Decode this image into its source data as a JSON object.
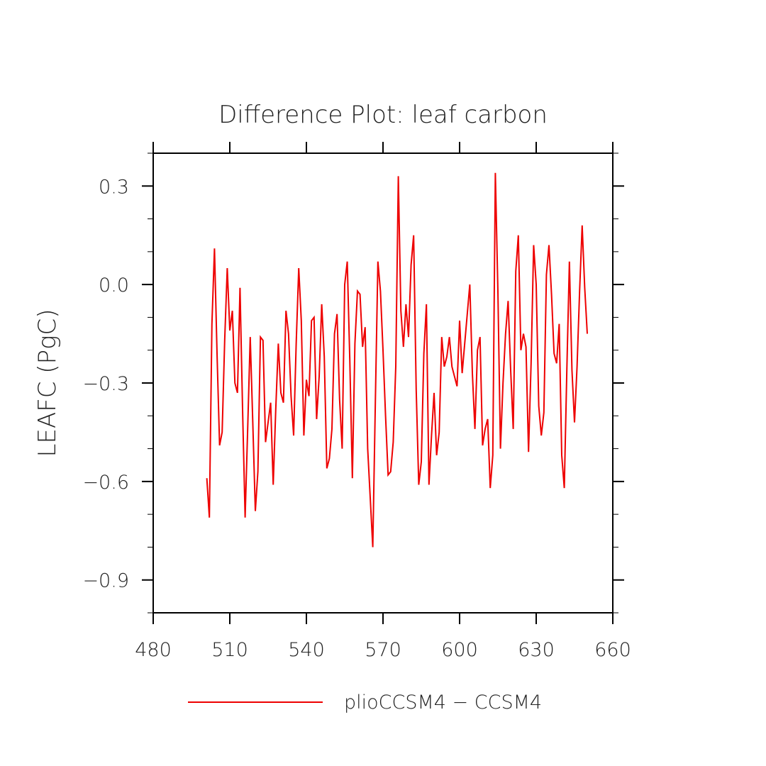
{
  "chart_data": {
    "type": "line",
    "title": "Difference Plot: leaf carbon",
    "xlabel": "",
    "ylabel": "LEAFC  (PgC)",
    "xlim": [
      480,
      660
    ],
    "ylim": [
      -1.0,
      0.4
    ],
    "xticks": [
      480,
      510,
      540,
      570,
      600,
      630,
      660
    ],
    "xtick_labels": [
      "480",
      "510",
      "540",
      "570",
      "600",
      "630",
      "660"
    ],
    "yticks": [
      -0.9,
      -0.6,
      -0.3,
      0.0,
      0.3
    ],
    "ytick_labels": [
      "−0.9",
      "−0.6",
      "−0.3",
      "0.0",
      "0.3"
    ],
    "grid": false,
    "legend_position": "bottom-center",
    "series": [
      {
        "name": "plioCCSM4 − CCSM4",
        "color": "#ee0000",
        "x": [
          501,
          502,
          503,
          504,
          505,
          506,
          507,
          508,
          509,
          510,
          511,
          512,
          513,
          514,
          515,
          516,
          517,
          518,
          519,
          520,
          521,
          522,
          523,
          524,
          525,
          526,
          527,
          528,
          529,
          530,
          531,
          532,
          533,
          534,
          535,
          536,
          537,
          538,
          539,
          540,
          541,
          542,
          543,
          544,
          545,
          546,
          547,
          548,
          549,
          550,
          551,
          552,
          553,
          554,
          555,
          556,
          557,
          558,
          559,
          560,
          561,
          562,
          563,
          564,
          565,
          566,
          567,
          568,
          569,
          570,
          571,
          572,
          573,
          574,
          575,
          576,
          577,
          578,
          579,
          580,
          581,
          582,
          583,
          584,
          585,
          586,
          587,
          588,
          589,
          590,
          591,
          592,
          593,
          594,
          595,
          596,
          597,
          598,
          599,
          600,
          601,
          602,
          603,
          604,
          605,
          606,
          607,
          608,
          609,
          610,
          611,
          612,
          613,
          614,
          615,
          616,
          617,
          618,
          619,
          620,
          621,
          622,
          623,
          624,
          625,
          626,
          627,
          628,
          629,
          630,
          631,
          632,
          633,
          634,
          635,
          636,
          637,
          638,
          639,
          640,
          641,
          642,
          643,
          644,
          645,
          646,
          647,
          648,
          649,
          650
        ],
        "y": [
          -0.59,
          -0.71,
          -0.12,
          0.11,
          -0.21,
          -0.49,
          -0.45,
          -0.17,
          0.05,
          -0.14,
          -0.08,
          -0.3,
          -0.33,
          -0.01,
          -0.38,
          -0.71,
          -0.44,
          -0.16,
          -0.42,
          -0.69,
          -0.57,
          -0.16,
          -0.17,
          -0.48,
          -0.42,
          -0.36,
          -0.61,
          -0.38,
          -0.18,
          -0.33,
          -0.36,
          -0.08,
          -0.15,
          -0.34,
          -0.46,
          -0.18,
          0.05,
          -0.11,
          -0.46,
          -0.29,
          -0.34,
          -0.11,
          -0.1,
          -0.41,
          -0.28,
          -0.06,
          -0.22,
          -0.56,
          -0.53,
          -0.44,
          -0.15,
          -0.09,
          -0.35,
          -0.5,
          0.0,
          0.07,
          -0.23,
          -0.59,
          -0.18,
          -0.02,
          -0.03,
          -0.19,
          -0.13,
          -0.5,
          -0.65,
          -0.8,
          -0.36,
          0.07,
          -0.02,
          -0.2,
          -0.4,
          -0.58,
          -0.57,
          -0.48,
          -0.25,
          0.33,
          -0.08,
          -0.19,
          -0.06,
          -0.16,
          0.06,
          0.15,
          -0.32,
          -0.61,
          -0.54,
          -0.21,
          -0.06,
          -0.61,
          -0.46,
          -0.33,
          -0.52,
          -0.45,
          -0.16,
          -0.25,
          -0.22,
          -0.16,
          -0.25,
          -0.28,
          -0.31,
          -0.11,
          -0.27,
          -0.18,
          -0.09,
          0.0,
          -0.27,
          -0.44,
          -0.2,
          -0.16,
          -0.49,
          -0.44,
          -0.41,
          -0.62,
          -0.52,
          0.34,
          -0.02,
          -0.5,
          -0.3,
          -0.15,
          -0.05,
          -0.26,
          -0.44,
          0.04,
          0.15,
          -0.2,
          -0.15,
          -0.19,
          -0.51,
          -0.24,
          0.12,
          0.0,
          -0.37,
          -0.46,
          -0.39,
          0.03,
          0.12,
          -0.03,
          -0.21,
          -0.24,
          -0.12,
          -0.52,
          -0.62,
          -0.26,
          0.07,
          -0.26,
          -0.42,
          -0.25,
          -0.02,
          0.18,
          -0.01,
          -0.15
        ]
      }
    ]
  }
}
